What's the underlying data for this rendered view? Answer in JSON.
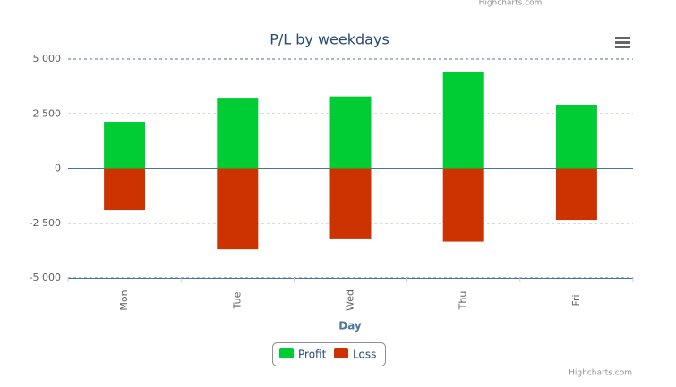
{
  "chart_data": {
    "type": "bar",
    "title": "P/L by weekdays",
    "x_label": "Day",
    "categories": [
      "Mon",
      "Tue",
      "Wed",
      "Thu",
      "Fri"
    ],
    "series": [
      {
        "name": "Profit",
        "color": "#00cc33",
        "values": [
          2100,
          3200,
          3300,
          4400,
          2900
        ]
      },
      {
        "name": "Loss",
        "color": "#cc3300",
        "values": [
          -1900,
          -3700,
          -3200,
          -3350,
          -2350
        ]
      }
    ],
    "ylim": [
      -5000,
      5000
    ],
    "yticks": [
      {
        "value": -5000,
        "label": "-5 000"
      },
      {
        "value": -2500,
        "label": "-2 500"
      },
      0,
      {
        "value": 2500,
        "label": "2 500"
      },
      {
        "value": 5000,
        "label": "5 000"
      }
    ],
    "grid": true,
    "credit_top": "Highcharts.com",
    "credit": "Highcharts.com"
  }
}
